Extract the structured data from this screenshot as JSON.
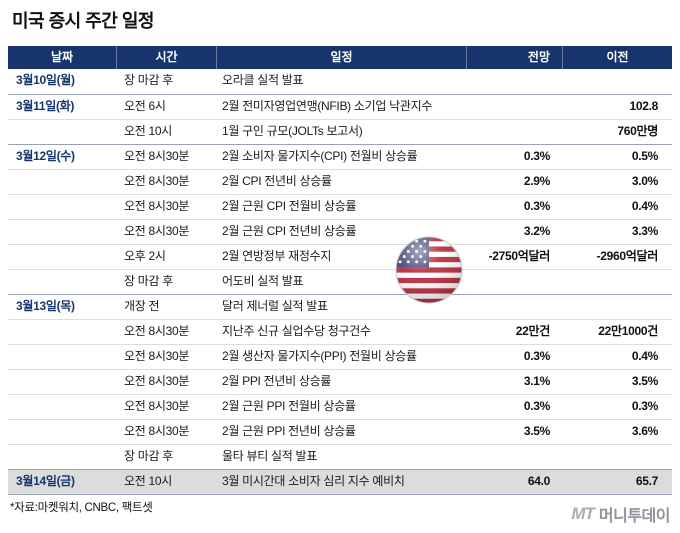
{
  "title": "미국 증시 주간 일정",
  "chart_data": {
    "type": "table",
    "title": "미국 증시 주간 일정",
    "columns": [
      "날짜",
      "시간",
      "일정",
      "전망",
      "이전"
    ],
    "rows": [
      {
        "date": "3월10일(월)",
        "time": "장 마감 후",
        "event": "오라클 실적 발표",
        "forecast": "",
        "previous": "",
        "group_start": true,
        "highlight": false
      },
      {
        "date": "3월11일(화)",
        "time": "오전 6시",
        "event": "2월 전미자영업연맹(NFIB) 소기업 낙관지수",
        "forecast": "",
        "previous": "102.8",
        "group_start": true,
        "highlight": false
      },
      {
        "date": "",
        "time": "오전 10시",
        "event": "1월 구인 규모(JOLTs 보고서)",
        "forecast": "",
        "previous": "760만명",
        "group_start": false,
        "highlight": false
      },
      {
        "date": "3월12일(수)",
        "time": "오전 8시30분",
        "event": "2월 소비자 물가지수(CPI) 전월비 상승률",
        "forecast": "0.3%",
        "previous": "0.5%",
        "group_start": true,
        "highlight": false
      },
      {
        "date": "",
        "time": "오전 8시30분",
        "event": "2월 CPI 전년비 상승률",
        "forecast": "2.9%",
        "previous": "3.0%",
        "group_start": false,
        "highlight": false
      },
      {
        "date": "",
        "time": "오전 8시30분",
        "event": "2월 근원 CPI 전월비 상승률",
        "forecast": "0.3%",
        "previous": "0.4%",
        "group_start": false,
        "highlight": false
      },
      {
        "date": "",
        "time": "오전 8시30분",
        "event": "2월 근원 CPI 전년비 상승률",
        "forecast": "3.2%",
        "previous": "3.3%",
        "group_start": false,
        "highlight": false
      },
      {
        "date": "",
        "time": "오후 2시",
        "event": "2월 연방정부 재정수지",
        "forecast": "-2750억달러",
        "previous": "-2960억달러",
        "group_start": false,
        "highlight": false
      },
      {
        "date": "",
        "time": "장 마감 후",
        "event": "어도비 실적 발표",
        "forecast": "",
        "previous": "",
        "group_start": false,
        "highlight": false
      },
      {
        "date": "3월13일(목)",
        "time": "개장 전",
        "event": "달러 제너럴 실적 발표",
        "forecast": "",
        "previous": "",
        "group_start": true,
        "highlight": false
      },
      {
        "date": "",
        "time": "오전 8시30분",
        "event": "지난주 신규 실업수당 청구건수",
        "forecast": "22만건",
        "previous": "22만1000건",
        "group_start": false,
        "highlight": false
      },
      {
        "date": "",
        "time": "오전 8시30분",
        "event": "2월 생산자 물가지수(PPI) 전월비 상승률",
        "forecast": "0.3%",
        "previous": "0.4%",
        "group_start": false,
        "highlight": false
      },
      {
        "date": "",
        "time": "오전 8시30분",
        "event": "2월 PPI 전년비 상승률",
        "forecast": "3.1%",
        "previous": "3.5%",
        "group_start": false,
        "highlight": false
      },
      {
        "date": "",
        "time": "오전 8시30분",
        "event": "2월 근원 PPI 전월비 상승률",
        "forecast": "0.3%",
        "previous": "0.3%",
        "group_start": false,
        "highlight": false
      },
      {
        "date": "",
        "time": "오전 8시30분",
        "event": "2월 근원 PPI 전년비 상승률",
        "forecast": "3.5%",
        "previous": "3.6%",
        "group_start": false,
        "highlight": false
      },
      {
        "date": "",
        "time": "장 마감 후",
        "event": "울타 뷰티 실적 발표",
        "forecast": "",
        "previous": "",
        "group_start": false,
        "highlight": false
      },
      {
        "date": "3월14일(금)",
        "time": "오전 10시",
        "event": "3월 미시간대 소비자 심리 지수 예비치",
        "forecast": "64.0",
        "previous": "65.7",
        "group_start": true,
        "highlight": true
      }
    ]
  },
  "icons": {
    "flag": "us-flag-icon"
  },
  "footnote": "*자료:마켓워치, CNBC, 팩트셋",
  "logo": {
    "mark": "MT",
    "text": "머니투데이"
  },
  "colors": {
    "header_bg": "#17356c",
    "date_text": "#17356c",
    "highlight_row": "#dcdcdc"
  }
}
